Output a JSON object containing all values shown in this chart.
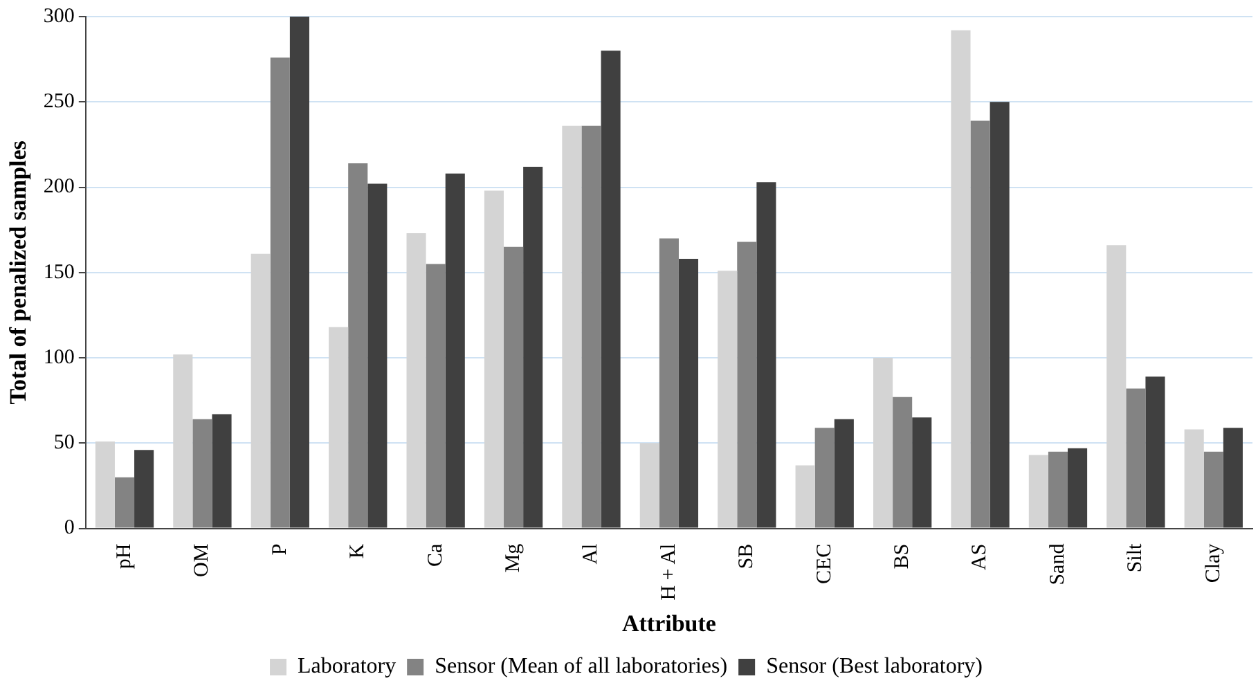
{
  "chart_data": {
    "type": "bar",
    "xlabel": "Attribute",
    "ylabel": "Total of penalized samples",
    "categories": [
      "pH",
      "OM",
      "P",
      "K",
      "Ca",
      "Mg",
      "Al",
      "H + Al",
      "SB",
      "CEC",
      "BS",
      "AS",
      "Sand",
      "Silt",
      "Clay"
    ],
    "series": [
      {
        "name": "Laboratory",
        "color": "#d4d4d4",
        "values": [
          51,
          102,
          161,
          118,
          173,
          198,
          236,
          50,
          151,
          37,
          100,
          292,
          43,
          166,
          58
        ]
      },
      {
        "name": "Sensor (Mean of all laboratories)",
        "color": "#838383",
        "values": [
          30,
          64,
          276,
          214,
          155,
          165,
          236,
          170,
          168,
          59,
          77,
          239,
          45,
          82,
          45
        ]
      },
      {
        "name": "Sensor (Best laboratory)",
        "color": "#404040",
        "values": [
          46,
          67,
          300,
          202,
          208,
          212,
          280,
          158,
          203,
          64,
          65,
          250,
          47,
          89,
          59
        ]
      }
    ],
    "ylim": [
      0,
      300
    ],
    "yticks": [
      0,
      50,
      100,
      150,
      200,
      250,
      300
    ],
    "grid": "y",
    "legend": "bottom"
  }
}
